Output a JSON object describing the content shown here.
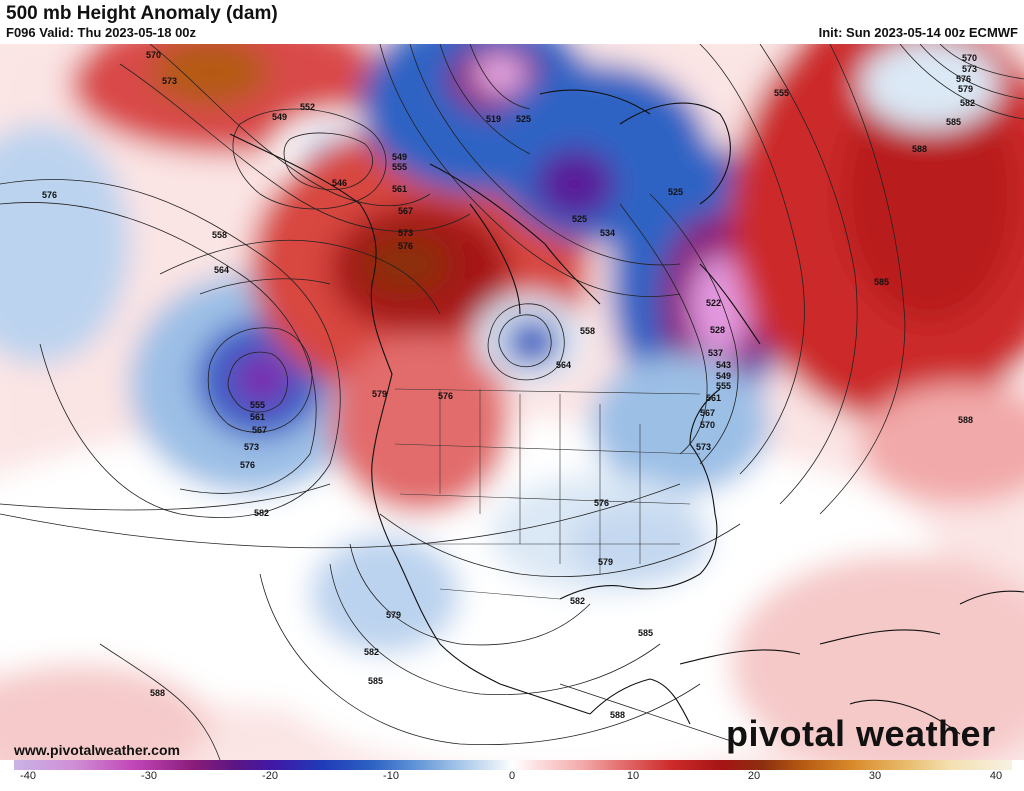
{
  "header": {
    "title": "500 mb Height Anomaly (dam)",
    "valid": "F096 Valid: Thu 2023-05-18 00z",
    "init": "Init: Sun 2023-05-14 00z ECMWF"
  },
  "footer": {
    "site": "www.pivotalweather.com",
    "brand": "pivotal weather"
  },
  "colorbar": {
    "ticks": [
      "-40",
      "-30",
      "-20",
      "-10",
      "0",
      "10",
      "20",
      "30",
      "40"
    ]
  },
  "contour_labels": {
    "l570": "570",
    "l573": "573",
    "l552": "552",
    "l549": "549",
    "l546": "546",
    "l576w": "576",
    "l558": "558",
    "l564": "564",
    "l555": "555",
    "l561": "561",
    "l567": "567",
    "l573b": "573",
    "l576b": "576",
    "l579": "579",
    "l576c": "576",
    "l582": "582",
    "l519": "519",
    "l525": "525",
    "l534": "534",
    "l522": "522",
    "l528": "528",
    "l537": "537",
    "l543": "543",
    "l558b": "558",
    "l564b": "564",
    "l555b": "555",
    "l588": "588",
    "l585": "585",
    "l576d": "576",
    "l579b": "579",
    "l582b": "582",
    "l585b": "585",
    "l588b": "588",
    "l579c": "579",
    "l582c": "582",
    "l585c": "585",
    "l588c": "588",
    "l588d": "588",
    "l570e": "570",
    "l573e": "573",
    "l576e": "576",
    "l579e": "579",
    "l582e": "582",
    "l585e": "585",
    "l573f": "573",
    "l570f": "570",
    "l567f": "567",
    "l561f": "561"
  },
  "colors": {
    "positive_anomaly": "#cc2a2a",
    "negative_anomaly": "#2e63c4",
    "strong_negative": "#7a1a8c",
    "neutral": "#ffffff"
  }
}
